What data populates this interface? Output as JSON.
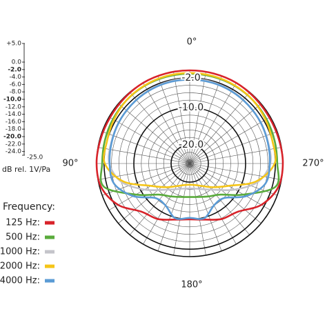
{
  "chart_data": {
    "type": "polar",
    "scale_label": "dB rel. 1V/Pa",
    "legend_title": "Frequency:",
    "rlim": [
      -25,
      0
    ],
    "rticks": [
      {
        "value": 5,
        "label": "+5.0"
      },
      {
        "value": 0,
        "label": "0.0"
      },
      {
        "value": -2,
        "label": "-2.0"
      },
      {
        "value": -4,
        "label": "-4.0"
      },
      {
        "value": -6,
        "label": "-6.0"
      },
      {
        "value": -8,
        "label": "-8.0"
      },
      {
        "value": -10,
        "label": "-10.0"
      },
      {
        "value": -12,
        "label": "-12.0"
      },
      {
        "value": -14,
        "label": "-14.0"
      },
      {
        "value": -16,
        "label": "-16.0"
      },
      {
        "value": -18,
        "label": "-18.0"
      },
      {
        "value": -20,
        "label": "-20.0"
      },
      {
        "value": -22,
        "label": "-22.0"
      },
      {
        "value": -24,
        "label": "-24.0"
      },
      {
        "value": -25,
        "label": "-25.0"
      }
    ],
    "ring_labels": [
      {
        "value": -2,
        "label": "-2.0"
      },
      {
        "value": -10,
        "label": "-10.0"
      },
      {
        "value": -20,
        "label": "-20.0"
      }
    ],
    "angle_ticks": [
      {
        "value": 0,
        "label": "0°"
      },
      {
        "value": 90,
        "label": "90°"
      },
      {
        "value": 180,
        "label": "180°"
      },
      {
        "value": 270,
        "label": "270°"
      }
    ],
    "angles": [
      0,
      15,
      30,
      45,
      60,
      75,
      90,
      105,
      120,
      135,
      150,
      165,
      180,
      195,
      210,
      225,
      240,
      255,
      270,
      285,
      300,
      315,
      330,
      345
    ],
    "series": [
      {
        "name": "125 Hz:",
        "color": "#d8232a",
        "values": [
          0,
          0,
          0,
          -0.2,
          -0.3,
          -0.2,
          0,
          -0.4,
          -2.8,
          -6.7,
          -7.8,
          -9.4,
          -10,
          -9.4,
          -7.8,
          -6.7,
          -2.8,
          -0.4,
          0,
          -0.2,
          -0.3,
          -0.2,
          0,
          0
        ]
      },
      {
        "name": "500 Hz:",
        "color": "#5aab3c",
        "values": [
          -0.9,
          -0.9,
          -0.9,
          -1,
          -1.2,
          -1.4,
          -1.5,
          -1.1,
          -8.3,
          -13.2,
          -14.8,
          -15.7,
          -16,
          -15.7,
          -14.8,
          -13.2,
          -8.3,
          -1.1,
          -1.5,
          -1.4,
          -1.2,
          -1,
          -0.9,
          -0.9
        ]
      },
      {
        "name": "1000 Hz:",
        "color": "#c4c4ca",
        "values": [
          -2.2,
          -2.3,
          -2.5,
          -2.8,
          -3,
          -3.2,
          -3.4,
          -6,
          -11,
          -15,
          -17,
          -18,
          -18.3,
          -18,
          -17,
          -15,
          -11,
          -6,
          -3.4,
          -3.2,
          -3,
          -2.8,
          -2.5,
          -2.3
        ]
      },
      {
        "name": "2000 Hz:",
        "color": "#f5c518",
        "values": [
          -0.7,
          -0.7,
          -0.8,
          -1,
          -1.5,
          -2,
          -2.2,
          -6.5,
          -13,
          -16,
          -18,
          -19,
          -19.3,
          -19,
          -18,
          -16,
          -13,
          -6.5,
          -2.2,
          -2,
          -1.5,
          -1,
          -0.8,
          -0.7
        ]
      },
      {
        "name": "4000 Hz:",
        "color": "#5b9bd5",
        "values": [
          -2.5,
          -2.5,
          -2.6,
          -2.8,
          -3,
          -3.3,
          -3.5,
          -4,
          -7.5,
          -11.9,
          -12,
          -9.8,
          -10.4,
          -9.8,
          -12,
          -11.9,
          -7.5,
          -4,
          -3.5,
          -3.3,
          -3,
          -2.8,
          -2.6,
          -2.5
        ]
      }
    ]
  }
}
